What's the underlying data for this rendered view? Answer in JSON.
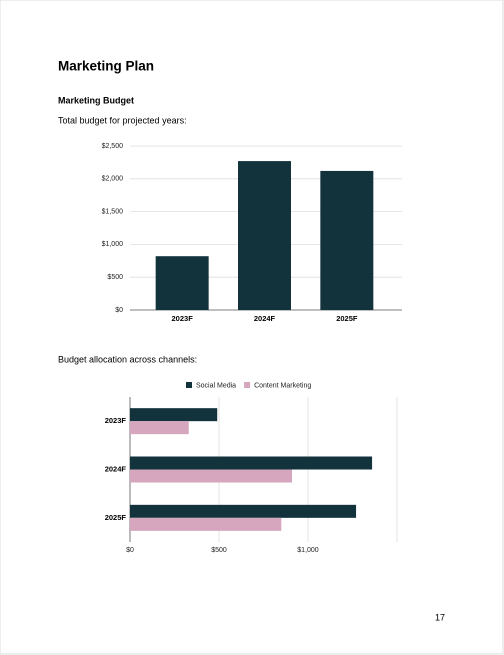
{
  "header": {
    "title": "Marketing Plan",
    "section": "Marketing Budget"
  },
  "captions": [
    "Total budget for projected years:",
    "Budget allocation across channels:"
  ],
  "chart_data": [
    {
      "type": "bar",
      "categories": [
        "2023F",
        "2024F",
        "2025F"
      ],
      "values": [
        820,
        2270,
        2120
      ],
      "color": "#12323c",
      "ylim": [
        0,
        2500
      ],
      "yticks": [
        {
          "value": 0,
          "label": "$0"
        },
        {
          "value": 500,
          "label": "$500"
        },
        {
          "value": 1000,
          "label": "$1,000"
        },
        {
          "value": 1500,
          "label": "$1,500"
        },
        {
          "value": 2000,
          "label": "$2,000"
        },
        {
          "value": 2500,
          "label": "$2,500"
        }
      ],
      "grid": true
    },
    {
      "type": "hbar",
      "categories": [
        "2023F",
        "2024F",
        "2025F"
      ],
      "series": [
        {
          "name": "Social Media",
          "color": "#12323c",
          "values": [
            490,
            1360,
            1270
          ]
        },
        {
          "name": "Content Marketing",
          "color": "#d5a6bd",
          "values": [
            330,
            910,
            850
          ]
        }
      ],
      "xlim": [
        0,
        1500
      ],
      "xticks": [
        {
          "value": 0,
          "label": "$0"
        },
        {
          "value": 500,
          "label": "$500"
        },
        {
          "value": 1000,
          "label": "$1,000"
        }
      ],
      "grid": true,
      "legend": "top"
    }
  ],
  "page_number": 17
}
